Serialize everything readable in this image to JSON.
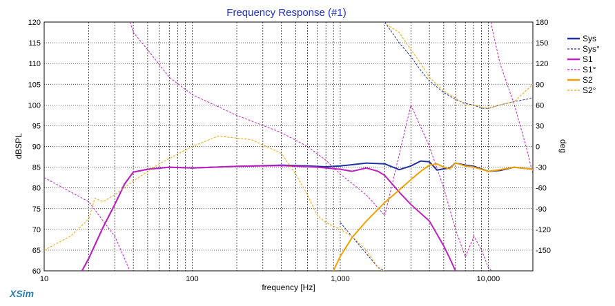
{
  "brand": "XSim",
  "chart_data": {
    "type": "line",
    "title": "Frequency Response (#1)",
    "xlabel": "frequency [Hz]",
    "ylabel": "dBSPL",
    "y2label": "deg",
    "xscale": "log",
    "xlim": [
      10,
      20000
    ],
    "ylim": [
      60,
      120
    ],
    "y2lim": [
      -180,
      180
    ],
    "x_ticks": [
      10,
      100,
      1000,
      10000
    ],
    "x_tick_labels": [
      "10",
      "100",
      "1,000",
      "10,000"
    ],
    "y_ticks": [
      60,
      65,
      70,
      75,
      80,
      85,
      90,
      95,
      100,
      105,
      110,
      115,
      120
    ],
    "y_tick_labels": [
      "60",
      "65",
      "70",
      "75",
      "80",
      "85",
      "90",
      "95",
      "100",
      "105",
      "110",
      "115",
      "120"
    ],
    "y2_ticks": [
      -150,
      -120,
      -90,
      -60,
      -30,
      0,
      30,
      60,
      90,
      120,
      150,
      180
    ],
    "y2_tick_labels": [
      "-150",
      "-120",
      "-90",
      "-60",
      "-30",
      "0",
      "30",
      "60",
      "90",
      "120",
      "150",
      "180"
    ],
    "grid": true,
    "legend_position": "top-right",
    "series": [
      {
        "name": "Sys",
        "style": "solid",
        "color": "#1f2f9f",
        "axis": "left",
        "x": [
          18,
          20,
          25,
          30,
          35,
          40,
          50,
          70,
          100,
          200,
          400,
          600,
          800,
          1000,
          1200,
          1500,
          2000,
          2500,
          3000,
          3500,
          4000,
          4500,
          5000,
          5500,
          6000,
          7000,
          8000,
          10000,
          12000,
          15000,
          20000
        ],
        "y": [
          60,
          63,
          70.5,
          76,
          81,
          83.8,
          84.5,
          85,
          84.8,
          85.2,
          85.5,
          85.3,
          85.1,
          85.3,
          85.6,
          86,
          85.8,
          84.4,
          85.3,
          86.5,
          86.3,
          84.3,
          84.6,
          84.8,
          86,
          85.5,
          85.2,
          84,
          84.2,
          85,
          84.5
        ]
      },
      {
        "name": "Sys°",
        "style": "dotted",
        "color": "#1f2f9f",
        "axis": "right",
        "x": [
          1000,
          1200,
          1500,
          1800,
          2000,
          2500,
          3000,
          3500,
          4000,
          5000,
          6000,
          7000,
          8000,
          9000,
          10000,
          12000,
          15000,
          20000
        ],
        "y": [
          -110,
          -130,
          -155,
          -175,
          180,
          150,
          130,
          110,
          95,
          78,
          68,
          62,
          60,
          55,
          55,
          60,
          65,
          70
        ]
      },
      {
        "name": "S1",
        "style": "solid",
        "color": "#c020c0",
        "axis": "left",
        "x": [
          18,
          20,
          25,
          30,
          35,
          40,
          50,
          70,
          100,
          200,
          400,
          700,
          1000,
          1200,
          1500,
          1800,
          2000,
          2500,
          3000,
          4000,
          5000,
          5500,
          6000
        ],
        "y": [
          60,
          63,
          70.5,
          76,
          81,
          83.8,
          84.5,
          85,
          84.8,
          85.2,
          85.4,
          85,
          84.5,
          84,
          84.8,
          84,
          83,
          79,
          76,
          72,
          66,
          63,
          60
        ]
      },
      {
        "name": "S1°",
        "style": "dotted",
        "color": "#c020c0",
        "axis": "right",
        "x": [
          10,
          20,
          30,
          37,
          38,
          40,
          50,
          70,
          100,
          200,
          400,
          600,
          800,
          1000,
          1500,
          2000,
          3000,
          4000,
          5000,
          6000,
          7000,
          8000,
          9000,
          10000,
          10500,
          12000,
          15000,
          18000,
          20000
        ],
        "y": [
          -45,
          -80,
          -130,
          -175,
          180,
          165,
          140,
          100,
          75,
          45,
          20,
          0,
          -20,
          -40,
          -70,
          -100,
          60,
          0,
          -60,
          -120,
          -160,
          -130,
          -150,
          -175,
          175,
          120,
          60,
          0,
          -40
        ]
      },
      {
        "name": "S2",
        "style": "solid",
        "color": "#f0a000",
        "axis": "left",
        "x": [
          900,
          1000,
          1200,
          1500,
          2000,
          2500,
          3000,
          3500,
          4000,
          4500,
          5000,
          5500,
          6000,
          7000,
          8000,
          10000,
          12000,
          15000,
          20000
        ],
        "y": [
          60,
          63.5,
          68,
          72,
          76.5,
          79.5,
          82,
          84,
          85.5,
          85.8,
          85,
          84.6,
          86,
          85.3,
          85,
          84,
          84.4,
          85,
          84.5
        ]
      },
      {
        "name": "S2°",
        "style": "dotted",
        "color": "#f0a000",
        "axis": "right",
        "x": [
          10,
          15,
          20,
          22,
          25,
          30,
          40,
          60,
          100,
          150,
          250,
          400,
          500,
          600,
          700,
          800,
          1000,
          1200,
          1500,
          1800,
          1900,
          2000,
          2500,
          3000,
          3500,
          4000,
          5000,
          6000,
          7000,
          8000,
          10000,
          12000,
          15000,
          20000
        ],
        "y": [
          -150,
          -130,
          -105,
          -75,
          -80,
          -70,
          -50,
          -25,
          0,
          15,
          10,
          -10,
          -40,
          -70,
          -100,
          -110,
          -120,
          -130,
          -150,
          -175,
          -180,
          178,
          165,
          140,
          120,
          100,
          80,
          70,
          60,
          60,
          55,
          60,
          65,
          90
        ]
      }
    ]
  }
}
